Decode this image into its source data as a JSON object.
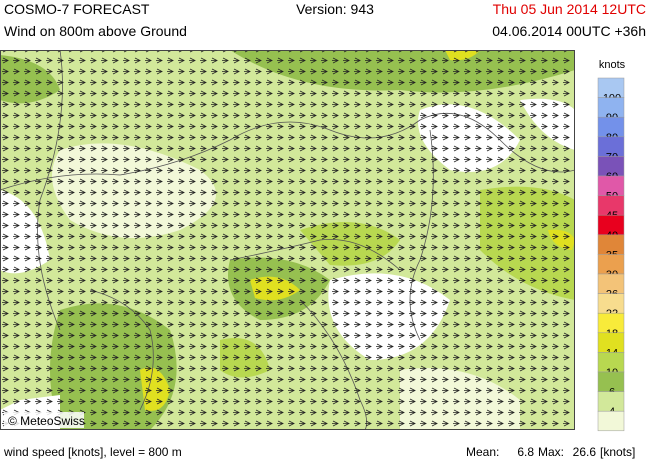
{
  "header": {
    "title": "COSMO-7 FORECAST",
    "subtitle": "Wind on 800m above Ground",
    "version": "Version: 943",
    "valid_time": "Thu 05 Jun 2014 12UTC",
    "run_time": "04.06.2014 00UTC +36h"
  },
  "legend": {
    "unit": "knots",
    "levels": [
      {
        "label": "100",
        "color": "#a9c8f2"
      },
      {
        "label": "90",
        "color": "#8fb3f0"
      },
      {
        "label": "80",
        "color": "#7391ea"
      },
      {
        "label": "70",
        "color": "#6b6fd8"
      },
      {
        "label": "60",
        "color": "#7a52b8"
      },
      {
        "label": "50",
        "color": "#e058a8"
      },
      {
        "label": "45",
        "color": "#e8386a"
      },
      {
        "label": "40",
        "color": "#e8001e"
      },
      {
        "label": "35",
        "color": "#e08638"
      },
      {
        "label": "30",
        "color": "#eba04e"
      },
      {
        "label": "26",
        "color": "#f3c378"
      },
      {
        "label": "22",
        "color": "#f7dc8e"
      },
      {
        "label": "18",
        "color": "#f8eb3a"
      },
      {
        "label": "14",
        "color": "#e0e020"
      },
      {
        "label": "10",
        "color": "#b8d850"
      },
      {
        "label": "6",
        "color": "#96c050"
      },
      {
        "label": "4",
        "color": "#d2e89a"
      }
    ],
    "lowest_color": "#f2f8d8"
  },
  "credit": "© MeteoSwiss",
  "footer": {
    "description": "wind speed [knots], level = 800 m",
    "mean_label": "Mean:",
    "mean": "6.8",
    "max_label": "Max:",
    "max": "26.6",
    "unit": "[knots]"
  }
}
